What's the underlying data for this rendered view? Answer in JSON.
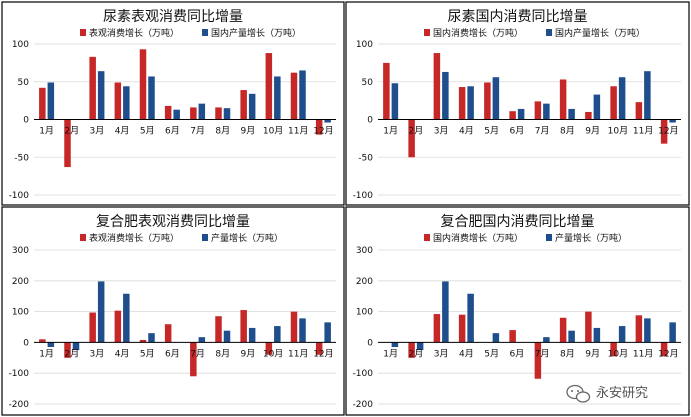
{
  "colors": {
    "red": "#C62828",
    "blue": "#1F4E8C"
  },
  "categories": [
    "1月",
    "2月",
    "3月",
    "4月",
    "5月",
    "6月",
    "7月",
    "8月",
    "9月",
    "10月",
    "11月",
    "12月"
  ],
  "watermark": {
    "text": "永安研究",
    "icon": "wechat-logo-icon"
  },
  "chart_data": [
    {
      "type": "bar",
      "title": "尿素表观消费同比增量",
      "categories": [
        "1月",
        "2月",
        "3月",
        "4月",
        "5月",
        "6月",
        "7月",
        "8月",
        "9月",
        "10月",
        "11月",
        "12月"
      ],
      "ylim": [
        -100,
        100
      ],
      "yticks": [
        -100,
        -50,
        0,
        50,
        100
      ],
      "series": [
        {
          "name": "表观消费增长（万吨）",
          "color": "#C62828",
          "values": [
            42,
            -63,
            83,
            49,
            93,
            18,
            16,
            16,
            39,
            88,
            62,
            -20
          ]
        },
        {
          "name": "国内产量增长（万吨）",
          "color": "#1F4E8C",
          "values": [
            49,
            0,
            64,
            44,
            57,
            13,
            21,
            15,
            34,
            57,
            65,
            -4
          ]
        }
      ]
    },
    {
      "type": "bar",
      "title": "尿素国内消费同比增量",
      "categories": [
        "1月",
        "2月",
        "3月",
        "4月",
        "5月",
        "6月",
        "7月",
        "8月",
        "9月",
        "10月",
        "11月",
        "12月"
      ],
      "ylim": [
        -100,
        100
      ],
      "yticks": [
        -100,
        -50,
        0,
        50,
        100
      ],
      "series": [
        {
          "name": "国内消费增长（万吨）",
          "color": "#C62828",
          "values": [
            75,
            -50,
            88,
            43,
            49,
            11,
            24,
            53,
            10,
            44,
            23,
            -32
          ]
        },
        {
          "name": "国内产量增长（万吨）",
          "color": "#1F4E8C",
          "values": [
            48,
            0,
            63,
            44,
            56,
            14,
            21,
            14,
            33,
            56,
            64,
            -4
          ]
        }
      ]
    },
    {
      "type": "bar",
      "title": "复合肥表观消费同比增量",
      "categories": [
        "1月",
        "2月",
        "3月",
        "4月",
        "5月",
        "6月",
        "7月",
        "8月",
        "9月",
        "10月",
        "11月",
        "12月"
      ],
      "ylim": [
        -200,
        300
      ],
      "yticks": [
        -200,
        -100,
        0,
        100,
        200,
        300
      ],
      "series": [
        {
          "name": "表观消费增长（万吨）",
          "color": "#C62828",
          "values": [
            10,
            -50,
            97,
            103,
            8,
            59,
            -110,
            85,
            105,
            -40,
            100,
            -40
          ]
        },
        {
          "name": "产量增长（万吨）",
          "color": "#1F4E8C",
          "values": [
            -15,
            -25,
            198,
            158,
            30,
            0,
            17,
            38,
            47,
            53,
            78,
            65
          ]
        }
      ]
    },
    {
      "type": "bar",
      "title": "复合肥国内消费同比增量",
      "categories": [
        "1月",
        "2月",
        "3月",
        "4月",
        "5月",
        "6月",
        "7月",
        "8月",
        "9月",
        "10月",
        "11月",
        "12月"
      ],
      "ylim": [
        -200,
        300
      ],
      "yticks": [
        -200,
        -100,
        0,
        100,
        200,
        300
      ],
      "series": [
        {
          "name": "国内消费增长（万吨）",
          "color": "#C62828",
          "values": [
            0,
            -50,
            92,
            90,
            0,
            40,
            -118,
            80,
            100,
            -45,
            88,
            -45
          ]
        },
        {
          "name": "产量增长（万吨）",
          "color": "#1F4E8C",
          "values": [
            -15,
            -25,
            198,
            158,
            30,
            0,
            17,
            38,
            47,
            53,
            78,
            65
          ]
        }
      ]
    }
  ]
}
